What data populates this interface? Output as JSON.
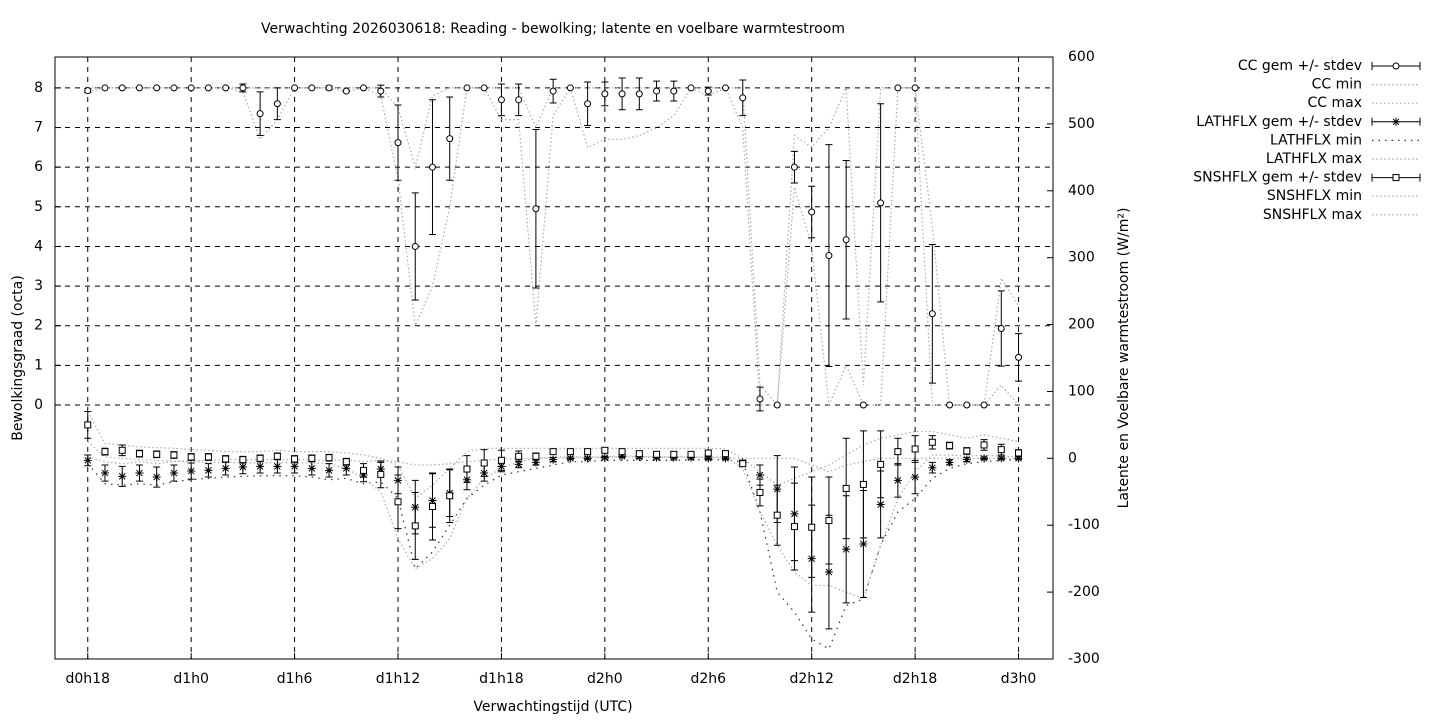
{
  "chart_data": {
    "type": "line",
    "title": "Verwachting 2026030618: Reading - bewolking; latente en voelbare warmtestroom",
    "xlabel": "Verwachtingstijd (UTC)",
    "ylabel": "Bewolkingsgraad (octa)",
    "y2label": "Latente en Voelbare warmtestroom (W/m²)",
    "x": [
      18,
      19,
      20,
      21,
      22,
      23,
      24,
      25,
      26,
      27,
      28,
      29,
      30,
      31,
      32,
      33,
      34,
      35,
      36,
      37,
      38,
      39,
      40,
      41,
      42,
      43,
      44,
      45,
      46,
      47,
      48,
      49,
      50,
      51,
      52,
      53,
      54,
      55,
      56,
      57,
      58,
      59,
      60,
      61,
      62,
      63,
      64,
      65,
      66,
      67,
      68,
      69,
      70,
      71,
      72
    ],
    "xlim": [
      16.1,
      74
    ],
    "xticks": [
      {
        "value": 18,
        "label": "d0h18"
      },
      {
        "value": 24,
        "label": "d1h0"
      },
      {
        "value": 30,
        "label": "d1h6"
      },
      {
        "value": 36,
        "label": "d1h12"
      },
      {
        "value": 42,
        "label": "d1h18"
      },
      {
        "value": 48,
        "label": "d2h0"
      },
      {
        "value": 54,
        "label": "d2h6"
      },
      {
        "value": 60,
        "label": "d2h12"
      },
      {
        "value": 66,
        "label": "d2h18"
      },
      {
        "value": 72,
        "label": "d3h0"
      }
    ],
    "ylim": [
      -6.41,
      8.78
    ],
    "yticks": [
      0,
      1,
      2,
      3,
      4,
      5,
      6,
      7,
      8
    ],
    "y2lim": [
      -300,
      600
    ],
    "y2ticks": [
      -300,
      -200,
      -100,
      0,
      100,
      200,
      300,
      400,
      500,
      600
    ],
    "grid": true,
    "legend": "outside-top-right",
    "series": [
      {
        "name": "CC gem +/- stdev",
        "color": "#000000",
        "style": "errorbar",
        "marker": "circle",
        "values": [
          7.93,
          8,
          8,
          8,
          8,
          8,
          8,
          8,
          8,
          8,
          7.35,
          7.6,
          8,
          8,
          8,
          7.92,
          8,
          7.92,
          6.62,
          4.0,
          6.0,
          6.72,
          8,
          8,
          7.7,
          7.7,
          4.95,
          7.92,
          8,
          7.6,
          7.85,
          7.85,
          7.85,
          7.92,
          7.92,
          8,
          7.92,
          8,
          7.75,
          0.15,
          0,
          6.0,
          4.87,
          3.77,
          4.17,
          0,
          5.1,
          8,
          8,
          2.3,
          0,
          0,
          0,
          1.93,
          1.2
        ],
        "errors": [
          0.05,
          0,
          0,
          0,
          0,
          0,
          0,
          0,
          0,
          0.1,
          0.55,
          0.4,
          0,
          0,
          0.05,
          0,
          0,
          0.15,
          0.95,
          1.35,
          1.7,
          1.05,
          0,
          0,
          0.4,
          0.4,
          2.0,
          0.3,
          0,
          0.55,
          0.3,
          0.4,
          0.4,
          0.25,
          0.25,
          0,
          0.1,
          0,
          0.45,
          0.3,
          0,
          0.4,
          0.65,
          2.8,
          2.0,
          0,
          2.5,
          0,
          0,
          1.75,
          0,
          0,
          0,
          0.95,
          0.6
        ]
      },
      {
        "name": "CC min",
        "color": "#aaaaaa",
        "style": "dotted",
        "values": [
          7.9,
          8,
          8,
          8,
          8,
          8,
          8,
          8,
          8,
          7.9,
          6.7,
          7.2,
          8,
          8,
          8,
          7.9,
          8,
          7.8,
          5.7,
          2.0,
          3.0,
          5.0,
          8,
          8,
          7.2,
          7.2,
          2.0,
          7.3,
          8,
          6.5,
          6.7,
          6.7,
          6.8,
          7.0,
          7.3,
          8,
          7.8,
          8,
          7.0,
          0,
          0,
          5.5,
          4.0,
          0,
          1.0,
          0,
          0,
          8,
          8,
          0,
          0,
          0,
          0,
          0.5,
          0
        ]
      },
      {
        "name": "CC max",
        "color": "#aaaaaa",
        "style": "dotted",
        "values": [
          8,
          8,
          8,
          8,
          8,
          8,
          8,
          8,
          8,
          8,
          8,
          8,
          8,
          8,
          8,
          8,
          8,
          8,
          7.5,
          6.0,
          7.8,
          8,
          8,
          8,
          8,
          8,
          7.0,
          8,
          8,
          8,
          8,
          8,
          8,
          8,
          8,
          8,
          8,
          8,
          8,
          0.5,
          0,
          6.8,
          6.5,
          7.0,
          8,
          0.5,
          8,
          8,
          8,
          4.5,
          0,
          0,
          0,
          3.2,
          2.5
        ]
      },
      {
        "name": "LATHFLX gem +/- stdev",
        "color": "#000000",
        "style": "errorbar",
        "marker": "asterisk",
        "axis": "y2",
        "values": [
          -3,
          -22,
          -27,
          -22,
          -28,
          -22,
          -19,
          -18,
          -15,
          -13,
          -12,
          -12,
          -12,
          -15,
          -18,
          -15,
          -25,
          -16,
          -33,
          -73,
          -63,
          -52,
          -32,
          -22,
          -12,
          -9,
          -6,
          -2,
          0,
          0,
          1,
          3,
          2,
          1,
          1,
          1,
          0,
          0,
          -6,
          -25,
          -46,
          -83,
          -150,
          -170,
          -136,
          -128,
          -69,
          -33,
          -28,
          -14,
          -6,
          -2,
          0,
          0,
          0
        ],
        "errors": [
          8,
          12,
          15,
          12,
          15,
          12,
          12,
          10,
          10,
          10,
          10,
          10,
          10,
          10,
          10,
          10,
          10,
          10,
          20,
          40,
          40,
          35,
          15,
          12,
          8,
          5,
          4,
          3,
          2,
          2,
          2,
          2,
          2,
          2,
          2,
          2,
          2,
          2,
          3,
          15,
          50,
          70,
          80,
          85,
          80,
          80,
          50,
          25,
          25,
          8,
          4,
          3,
          2,
          2,
          2
        ]
      },
      {
        "name": "LATHFLX min",
        "color": "#333333",
        "style": "dotted",
        "axis": "y2",
        "values": [
          -8,
          -38,
          -40,
          -38,
          -40,
          -35,
          -32,
          -30,
          -28,
          -27,
          -26,
          -26,
          -26,
          -28,
          -32,
          -30,
          -38,
          -35,
          -60,
          -165,
          -140,
          -100,
          -60,
          -40,
          -25,
          -20,
          -15,
          -10,
          -5,
          -5,
          -3,
          -3,
          -3,
          -3,
          -3,
          -2,
          -2,
          -2,
          -5,
          -80,
          -200,
          -230,
          -270,
          -285,
          -220,
          -210,
          -130,
          -80,
          -60,
          -30,
          -15,
          -8,
          -5,
          -3,
          -2
        ]
      },
      {
        "name": "LATHFLX max",
        "color": "#aaaaaa",
        "style": "dotted",
        "axis": "y2",
        "values": [
          2,
          -5,
          -8,
          -5,
          -8,
          -5,
          -4,
          -3,
          -2,
          -2,
          -2,
          -2,
          -2,
          -2,
          -3,
          -2,
          -5,
          -3,
          -5,
          -10,
          -10,
          -8,
          -5,
          -3,
          -1,
          0,
          0,
          0,
          1,
          1,
          2,
          4,
          3,
          2,
          2,
          2,
          1,
          1,
          0,
          0,
          0,
          0,
          -10,
          -20,
          -10,
          -5,
          0,
          0,
          0,
          0,
          0,
          0,
          0,
          0,
          0
        ]
      },
      {
        "name": "SNSHFLX gem +/- stdev",
        "color": "#000000",
        "style": "errorbar",
        "marker": "square",
        "axis": "y2",
        "values": [
          50,
          10,
          12,
          7,
          6,
          5,
          2,
          2,
          -1,
          -2,
          0,
          3,
          -1,
          0,
          1,
          -5,
          -18,
          -24,
          -65,
          -101,
          -72,
          -56,
          -16,
          -7,
          -3,
          3,
          3,
          10,
          10,
          10,
          12,
          10,
          7,
          6,
          6,
          6,
          8,
          7,
          -8,
          -51,
          -85,
          -102,
          -103,
          -93,
          -45,
          -39,
          -9,
          10,
          14,
          24,
          19,
          11,
          20,
          13,
          8
        ],
        "errors": [
          20,
          5,
          8,
          5,
          5,
          5,
          5,
          5,
          5,
          5,
          5,
          5,
          5,
          5,
          5,
          5,
          10,
          20,
          40,
          50,
          50,
          40,
          20,
          20,
          15,
          8,
          5,
          3,
          3,
          3,
          3,
          3,
          3,
          3,
          3,
          3,
          3,
          3,
          4,
          20,
          45,
          65,
          75,
          65,
          75,
          80,
          50,
          20,
          20,
          10,
          5,
          5,
          8,
          8,
          5
        ]
      },
      {
        "name": "SNSHFLX min",
        "color": "#aaaaaa",
        "style": "dotted",
        "axis": "y2",
        "values": [
          25,
          2,
          0,
          -2,
          -3,
          -4,
          -5,
          -6,
          -6,
          -7,
          -7,
          -6,
          -7,
          -7,
          -8,
          -15,
          -30,
          -50,
          -120,
          -165,
          -150,
          -120,
          -60,
          -30,
          -15,
          -5,
          0,
          2,
          2,
          2,
          2,
          2,
          2,
          2,
          2,
          2,
          2,
          2,
          -15,
          -80,
          -130,
          -170,
          -190,
          -190,
          -200,
          -210,
          -130,
          -60,
          -20,
          5,
          5,
          3,
          5,
          3,
          2
        ]
      },
      {
        "name": "SNSHFLX max",
        "color": "#aaaaaa",
        "style": "dotted",
        "axis": "y2",
        "values": [
          70,
          22,
          20,
          17,
          16,
          15,
          13,
          12,
          10,
          10,
          10,
          12,
          10,
          10,
          10,
          8,
          5,
          0,
          -10,
          -60,
          -40,
          -15,
          10,
          15,
          15,
          15,
          15,
          15,
          15,
          15,
          15,
          15,
          15,
          15,
          15,
          15,
          15,
          14,
          0,
          -20,
          -40,
          -30,
          -20,
          -10,
          5,
          20,
          30,
          35,
          40,
          40,
          35,
          30,
          35,
          30,
          25
        ]
      }
    ]
  }
}
